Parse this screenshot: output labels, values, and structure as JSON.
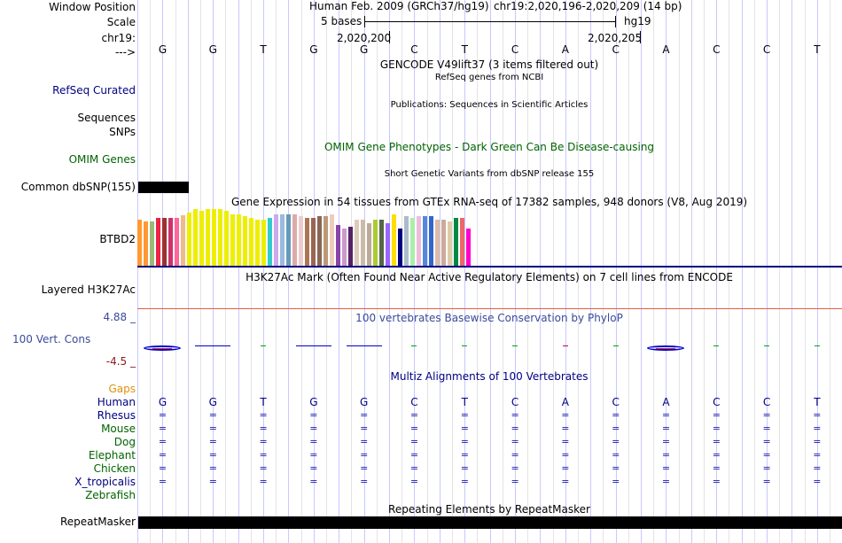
{
  "header": {
    "window_position_label": "Window Position",
    "scale_label": "Scale",
    "chrom_label": "chr19:",
    "strand_label": "--->",
    "assembly": "Human Feb. 2009 (GRCh37/hg19)",
    "position": "chr19:2,020,196-2,020,209 (14 bp)",
    "scale_text": "5 bases",
    "scale_db": "hg19",
    "coord1": "2,020,200",
    "coord2": "2,020,205"
  },
  "bases": [
    "G",
    "G",
    "T",
    "G",
    "G",
    "C",
    "T",
    "C",
    "A",
    "C",
    "A",
    "C",
    "C",
    "T"
  ],
  "tracks": {
    "gencode_title": "GENCODE V49lift37 (3 items filtered out)",
    "refseq_title": "RefSeq genes from NCBI",
    "refseq_label": "RefSeq Curated",
    "pubs_title": "Publications: Sequences in Scientific Articles",
    "sequences_label": "Sequences",
    "snps_label": "SNPs",
    "omim_title": "OMIM Gene Phenotypes - Dark Green Can Be Disease-causing",
    "omim_label": "OMIM Genes",
    "dbsnp_title": "Short Genetic Variants from dbSNP release 155",
    "dbsnp_label": "Common dbSNP(155)",
    "gtex_title": "Gene Expression in 54 tissues from GTEx RNA-seq of 17382 samples, 948 donors (V8, Aug 2019)",
    "gtex_label": "BTBD2",
    "h3k27_title": "H3K27Ac Mark (Often Found Near Active Regulatory Elements) on 7 cell lines from ENCODE",
    "h3k27_label": "Layered H3K27Ac",
    "cons_title": "100 vertebrates Basewise Conservation by PhyloP",
    "cons_label": "100 Vert. Cons",
    "cons_max": "4.88 _",
    "cons_min": "-4.5 _",
    "multiz_title": "Multiz Alignments of 100 Vertebrates",
    "gaps_label": "Gaps",
    "repeat_title": "Repeating Elements by RepeatMasker",
    "repeat_label": "RepeatMasker"
  },
  "species": [
    {
      "name": "Human",
      "color": "#000080"
    },
    {
      "name": "Rhesus",
      "color": "#000080"
    },
    {
      "name": "Mouse",
      "color": "#006400"
    },
    {
      "name": "Dog",
      "color": "#006400"
    },
    {
      "name": "Elephant",
      "color": "#006400"
    },
    {
      "name": "Chicken",
      "color": "#006400"
    },
    {
      "name": "X_tropicalis",
      "color": "#000080"
    },
    {
      "name": "Zebrafish",
      "color": "#006400"
    }
  ],
  "gtex_bars": [
    {
      "h": 52,
      "c": "#ff9933"
    },
    {
      "h": 50,
      "c": "#ff9933"
    },
    {
      "h": 50,
      "c": "#99bb77"
    },
    {
      "h": 54,
      "c": "#ee2244"
    },
    {
      "h": 54,
      "c": "#993333"
    },
    {
      "h": 54,
      "c": "#cc3366"
    },
    {
      "h": 54,
      "c": "#ff6699"
    },
    {
      "h": 57,
      "c": "#eebb88"
    },
    {
      "h": 60,
      "c": "#eeee00"
    },
    {
      "h": 64,
      "c": "#eeee00"
    },
    {
      "h": 62,
      "c": "#eeee00"
    },
    {
      "h": 64,
      "c": "#eeee00"
    },
    {
      "h": 64,
      "c": "#eeee00"
    },
    {
      "h": 64,
      "c": "#eeee00"
    },
    {
      "h": 62,
      "c": "#eeee00"
    },
    {
      "h": 58,
      "c": "#eeee00"
    },
    {
      "h": 58,
      "c": "#eeee00"
    },
    {
      "h": 56,
      "c": "#eeee00"
    },
    {
      "h": 54,
      "c": "#eeee00"
    },
    {
      "h": 52,
      "c": "#eeee00"
    },
    {
      "h": 52,
      "c": "#eeee00"
    },
    {
      "h": 54,
      "c": "#33cccc"
    },
    {
      "h": 58,
      "c": "#ccaaee"
    },
    {
      "h": 58,
      "c": "#99bbdd"
    },
    {
      "h": 58,
      "c": "#6699bb"
    },
    {
      "h": 58,
      "c": "#ddaaaa"
    },
    {
      "h": 56,
      "c": "#eecccc"
    },
    {
      "h": 54,
      "c": "#aa7755"
    },
    {
      "h": 54,
      "c": "#996655"
    },
    {
      "h": 56,
      "c": "#886655"
    },
    {
      "h": 56,
      "c": "#bb9977"
    },
    {
      "h": 58,
      "c": "#eeccbb"
    },
    {
      "h": 46,
      "c": "#8844aa"
    },
    {
      "h": 42,
      "c": "#cc99cc"
    },
    {
      "h": 44,
      "c": "#552266"
    },
    {
      "h": 52,
      "c": "#ddccbb"
    },
    {
      "h": 52,
      "c": "#ccbbaa"
    },
    {
      "h": 48,
      "c": "#bbaa99"
    },
    {
      "h": 52,
      "c": "#aacc33"
    },
    {
      "h": 52,
      "c": "#556644"
    },
    {
      "h": 48,
      "c": "#9966ff"
    },
    {
      "h": 58,
      "c": "#ffdd00"
    },
    {
      "h": 42,
      "c": "#000080"
    },
    {
      "h": 56,
      "c": "#aabbcc"
    },
    {
      "h": 54,
      "c": "#aaeeaa"
    },
    {
      "h": 56,
      "c": "#eebbdd"
    },
    {
      "h": 56,
      "c": "#5588dd"
    },
    {
      "h": 56,
      "c": "#3366cc"
    },
    {
      "h": 52,
      "c": "#ddbbaa"
    },
    {
      "h": 52,
      "c": "#ccaa99"
    },
    {
      "h": 50,
      "c": "#ddccaa"
    },
    {
      "h": 54,
      "c": "#008844"
    },
    {
      "h": 54,
      "c": "#ee6666"
    },
    {
      "h": 42,
      "c": "#ff00cc"
    }
  ],
  "phylop_marks": [
    {
      "base": 0,
      "kind": "ring",
      "c": "#0000cc"
    },
    {
      "base": 1,
      "kind": "dash",
      "c": "#0000cc"
    },
    {
      "base": 2,
      "kind": "tick",
      "c": "#00aa00"
    },
    {
      "base": 3,
      "kind": "dash",
      "c": "#0000cc"
    },
    {
      "base": 4,
      "kind": "dash",
      "c": "#0000cc"
    },
    {
      "base": 5,
      "kind": "tick",
      "c": "#00aa00"
    },
    {
      "base": 6,
      "kind": "tick",
      "c": "#00aa00"
    },
    {
      "base": 7,
      "kind": "tick",
      "c": "#00aa00"
    },
    {
      "base": 8,
      "kind": "tick",
      "c": "#cc0066"
    },
    {
      "base": 9,
      "kind": "tick",
      "c": "#00aa00"
    },
    {
      "base": 10,
      "kind": "ring",
      "c": "#0000cc"
    },
    {
      "base": 11,
      "kind": "tick",
      "c": "#00aa00"
    },
    {
      "base": 12,
      "kind": "tick",
      "c": "#00aa00"
    },
    {
      "base": 13,
      "kind": "tick",
      "c": "#00aa00"
    }
  ],
  "colors": {
    "gtex_baseline": "#000080",
    "h3k27_line": "#e06040",
    "dbsnp_block": "#000000",
    "repeat_block": "#000000"
  }
}
